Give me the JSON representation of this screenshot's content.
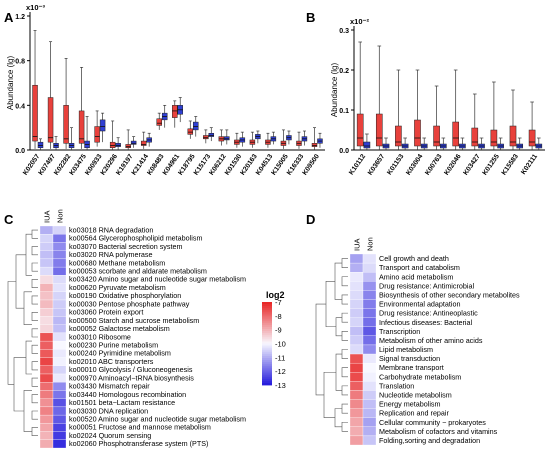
{
  "chart_data": [
    {
      "panel": "A",
      "type": "box",
      "ylabel": "Abundance (lg)",
      "y_exponent": "x10⁻³",
      "ylim": [
        0,
        1.2
      ],
      "yticks": [
        "0.0",
        "0.4",
        "0.8",
        "1.2"
      ],
      "categories": [
        "K02057",
        "K07497",
        "K02282",
        "K03475",
        "K00933",
        "K20296",
        "K19197",
        "K21414",
        "K08483",
        "K04961",
        "K18795",
        "K15173",
        "K06212",
        "K01530",
        "K20163",
        "K04513",
        "K15005",
        "K16333",
        "K09500"
      ],
      "series": [
        {
          "color": "#e8413c",
          "boxes": [
            [
              0.08,
              0.58
            ],
            [
              0.07,
              0.47
            ],
            [
              0.06,
              0.4
            ],
            [
              0.06,
              0.35
            ],
            [
              0.07,
              0.21
            ],
            [
              0.02,
              0.07
            ],
            [
              0.02,
              0.05
            ],
            [
              0.04,
              0.08
            ],
            [
              0.22,
              0.28
            ],
            [
              0.29,
              0.4
            ],
            [
              0.14,
              0.19
            ],
            [
              0.1,
              0.13
            ],
            [
              0.08,
              0.12
            ],
            [
              0.05,
              0.09
            ],
            [
              0.05,
              0.09
            ],
            [
              0.05,
              0.09
            ],
            [
              0.04,
              0.08
            ],
            [
              0.04,
              0.08
            ],
            [
              0.03,
              0.06
            ]
          ],
          "medians": [
            0.12,
            0.11,
            0.1,
            0.1,
            0.12,
            0.04,
            0.03,
            0.05,
            0.24,
            0.35,
            0.16,
            0.11,
            0.1,
            0.07,
            0.07,
            0.07,
            0.06,
            0.06,
            0.04
          ],
          "whiskers": [
            [
              0.01,
              1.07
            ],
            [
              0.01,
              0.97
            ],
            [
              0.01,
              0.82
            ],
            [
              0.01,
              0.74
            ],
            [
              0.03,
              0.35
            ],
            [
              0.0,
              0.26
            ],
            [
              0.0,
              0.18
            ],
            [
              0.01,
              0.16
            ],
            [
              0.18,
              0.33
            ],
            [
              0.2,
              0.44
            ],
            [
              0.1,
              0.26
            ],
            [
              0.06,
              0.18
            ],
            [
              0.04,
              0.18
            ],
            [
              0.02,
              0.15
            ],
            [
              0.02,
              0.16
            ],
            [
              0.02,
              0.15
            ],
            [
              0.01,
              0.18
            ],
            [
              0.01,
              0.16
            ],
            [
              0.0,
              0.2
            ]
          ]
        },
        {
          "color": "#2f3fd3",
          "boxes": [
            [
              0.02,
              0.07
            ],
            [
              0.02,
              0.06
            ],
            [
              0.02,
              0.06
            ],
            [
              0.02,
              0.08
            ],
            [
              0.17,
              0.27
            ],
            [
              0.03,
              0.06
            ],
            [
              0.05,
              0.08
            ],
            [
              0.07,
              0.11
            ],
            [
              0.27,
              0.33
            ],
            [
              0.32,
              0.4
            ],
            [
              0.18,
              0.25
            ],
            [
              0.12,
              0.15
            ],
            [
              0.09,
              0.12
            ],
            [
              0.07,
              0.11
            ],
            [
              0.1,
              0.14
            ],
            [
              0.08,
              0.12
            ],
            [
              0.09,
              0.13
            ],
            [
              0.08,
              0.12
            ],
            [
              0.06,
              0.1
            ]
          ],
          "medians": [
            0.04,
            0.04,
            0.04,
            0.05,
            0.21,
            0.04,
            0.06,
            0.09,
            0.3,
            0.36,
            0.21,
            0.13,
            0.1,
            0.09,
            0.12,
            0.1,
            0.11,
            0.1,
            0.08
          ],
          "whiskers": [
            [
              0.0,
              0.1
            ],
            [
              0.0,
              0.12
            ],
            [
              0.0,
              0.2
            ],
            [
              0.0,
              0.3
            ],
            [
              0.07,
              0.33
            ],
            [
              0.0,
              0.11
            ],
            [
              0.02,
              0.12
            ],
            [
              0.03,
              0.15
            ],
            [
              0.2,
              0.4
            ],
            [
              0.25,
              0.47
            ],
            [
              0.12,
              0.3
            ],
            [
              0.08,
              0.2
            ],
            [
              0.05,
              0.18
            ],
            [
              0.03,
              0.16
            ],
            [
              0.06,
              0.17
            ],
            [
              0.05,
              0.16
            ],
            [
              0.05,
              0.17
            ],
            [
              0.04,
              0.17
            ],
            [
              0.02,
              0.15
            ]
          ]
        }
      ]
    },
    {
      "panel": "B",
      "type": "box",
      "ylabel": "Abundance (lg)",
      "y_exponent": "x10⁻²",
      "ylim": [
        0,
        0.3
      ],
      "yticks": [
        "0.0",
        "0.1",
        "0.2",
        "0.3"
      ],
      "categories": [
        "K10112",
        "K03657",
        "K01153",
        "K03004",
        "K00763",
        "K02046",
        "K03427",
        "K01255",
        "K15583",
        "K02111"
      ],
      "series": [
        {
          "color": "#e8413c",
          "boxes": [
            [
              0.01,
              0.09
            ],
            [
              0.01,
              0.09
            ],
            [
              0.01,
              0.06
            ],
            [
              0.01,
              0.075
            ],
            [
              0.01,
              0.06
            ],
            [
              0.01,
              0.07
            ],
            [
              0.01,
              0.055
            ],
            [
              0.01,
              0.05
            ],
            [
              0.01,
              0.06
            ],
            [
              0.01,
              0.05
            ]
          ],
          "medians": [
            0.03,
            0.03,
            0.02,
            0.03,
            0.02,
            0.03,
            0.02,
            0.02,
            0.02,
            0.02
          ],
          "whiskers": [
            [
              0.0,
              0.27
            ],
            [
              0.0,
              0.26
            ],
            [
              0.0,
              0.2
            ],
            [
              0.0,
              0.2
            ],
            [
              0.0,
              0.16
            ],
            [
              0.0,
              0.2
            ],
            [
              0.0,
              0.14
            ],
            [
              0.0,
              0.17
            ],
            [
              0.0,
              0.15
            ],
            [
              0.0,
              0.12
            ]
          ]
        },
        {
          "color": "#2f3fd3",
          "boxes": [
            [
              0.005,
              0.02
            ],
            [
              0.005,
              0.015
            ],
            [
              0.005,
              0.015
            ],
            [
              0.005,
              0.015
            ],
            [
              0.005,
              0.015
            ],
            [
              0.005,
              0.015
            ],
            [
              0.005,
              0.015
            ],
            [
              0.005,
              0.015
            ],
            [
              0.005,
              0.015
            ],
            [
              0.005,
              0.015
            ]
          ],
          "medians": [
            0.01,
            0.01,
            0.01,
            0.01,
            0.01,
            0.01,
            0.01,
            0.01,
            0.01,
            0.01
          ],
          "whiskers": [
            [
              0.0,
              0.04
            ],
            [
              0.0,
              0.03
            ],
            [
              0.0,
              0.03
            ],
            [
              0.0,
              0.03
            ],
            [
              0.0,
              0.03
            ],
            [
              0.0,
              0.03
            ],
            [
              0.0,
              0.03
            ],
            [
              0.0,
              0.03
            ],
            [
              0.0,
              0.03
            ],
            [
              0.0,
              0.03
            ]
          ]
        }
      ]
    },
    {
      "panel": "C",
      "type": "heatmap",
      "columns": [
        "IUA",
        "Non"
      ],
      "rows": [
        "ko03018 RNA degradation",
        "ko00564 Glycerophospholipid metabolism",
        "ko03070 Bacterial secretion system",
        "ko03020 RNA polymerase",
        "ko00680 Methane metabolism",
        "ko00053 scorbate and aldarate metabolism",
        "ko03420 Amino sugar and nucleotide sugar metabolism",
        "ko00620 Pyruvate metabolism",
        "ko00190 Oxidative phosphorylation",
        "ko00030 Pentose phosphate pathway",
        "ko03060 Protein export",
        "ko00500 Starch and sucrose metabolism",
        "ko00052 Galactose metabolism",
        "ko03010 Ribosome",
        "ko00230 Purine metabolism",
        "ko00240 Pyrimidine metabolism",
        "ko02010 ABC transporters",
        "ko00010 Glycolysis / Gluconeogenesis",
        "ko00970 Aminoacyl−tRNA biosynthesis",
        "ko03430 Mismatch repair",
        "ko03440 Homologous recombination",
        "ko01501 beta−Lactam resistance",
        "ko03030 DNA replication",
        "ko00520 Amino sugar and nucleotide sugar metabolism",
        "ko00051 Fructose and mannose metabolism",
        "ko02024 Quorum sensing",
        "ko02060 Phosphotransferase system (PTS)"
      ],
      "values": [
        [
          -11.0,
          -10.5
        ],
        [
          -10.5,
          -11.8
        ],
        [
          -10.6,
          -11.5
        ],
        [
          -10.8,
          -11.6
        ],
        [
          -10.7,
          -11.7
        ],
        [
          -10.4,
          -11.9
        ],
        [
          -9.6,
          -10.4
        ],
        [
          -9.0,
          -10.3
        ],
        [
          -9.2,
          -10.5
        ],
        [
          -9.1,
          -10.6
        ],
        [
          -9.4,
          -10.7
        ],
        [
          -9.6,
          -10.9
        ],
        [
          -9.5,
          -10.8
        ],
        [
          -7.6,
          -10.3
        ],
        [
          -7.8,
          -10.0
        ],
        [
          -7.7,
          -10.2
        ],
        [
          -7.4,
          -10.1
        ],
        [
          -7.8,
          -10.5
        ],
        [
          -7.5,
          -10.2
        ],
        [
          -8.0,
          -11.5
        ],
        [
          -8.2,
          -11.8
        ],
        [
          -8.5,
          -12.3
        ],
        [
          -8.3,
          -12.0
        ],
        [
          -8.6,
          -12.2
        ],
        [
          -8.8,
          -12.5
        ],
        [
          -9.0,
          -12.6
        ],
        [
          -8.9,
          -12.8
        ]
      ],
      "legend_title": "log2",
      "scale": [
        -13,
        -7
      ],
      "scale_ticks": [
        "-7",
        "-8",
        "-9",
        "-10",
        "-11",
        "-12",
        "-13"
      ]
    },
    {
      "panel": "D",
      "type": "heatmap",
      "columns": [
        "IUA",
        "Non"
      ],
      "rows": [
        "Cell growth and death",
        "Transport and catabolism",
        "Amino acid metabolism",
        "Drug resistance: Antimicrobial",
        "Biosynthesis of other secondary metabolites",
        "Environmental adaptation",
        "Drug resistance: Antineoplastic",
        "Infectious diseases: Bacterial",
        "Transcription",
        "Metabolism of other amino acids",
        "Lipid metabolism",
        "Signal transduction",
        "Membrane transport",
        "Carbohydrate metabolism",
        "Translation",
        "Nucleotide metabolism",
        "Energy metabolism",
        "Replication and repair",
        "Cellular community − prokaryotes",
        "Metabolism of cofactors and vitamins",
        "Folding,sorting and degradation"
      ],
      "values": [
        [
          -11.2,
          -10.3
        ],
        [
          -11.0,
          -10.4
        ],
        [
          -10.2,
          -10.8
        ],
        [
          -10.3,
          -11.4
        ],
        [
          -10.4,
          -11.6
        ],
        [
          -10.5,
          -11.7
        ],
        [
          -10.6,
          -11.8
        ],
        [
          -10.5,
          -11.9
        ],
        [
          -10.8,
          -12.2
        ],
        [
          -10.6,
          -11.9
        ],
        [
          -10.4,
          -11.5
        ],
        [
          -7.6,
          -10.2
        ],
        [
          -7.4,
          -10.0
        ],
        [
          -7.5,
          -10.1
        ],
        [
          -7.8,
          -10.3
        ],
        [
          -8.2,
          -10.6
        ],
        [
          -8.4,
          -10.8
        ],
        [
          -8.6,
          -10.9
        ],
        [
          -8.8,
          -11.2
        ],
        [
          -8.9,
          -11.0
        ],
        [
          -8.7,
          -10.7
        ]
      ]
    }
  ],
  "panel_letters": [
    "A",
    "B",
    "C",
    "D"
  ]
}
